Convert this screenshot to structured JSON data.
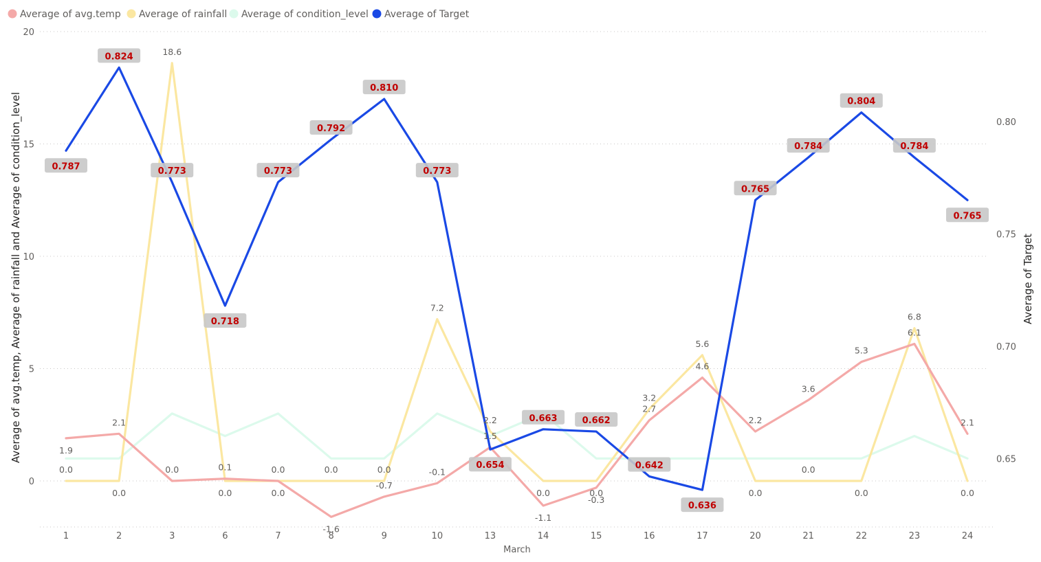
{
  "chart_data": {
    "type": "line",
    "categories": [
      "1",
      "2",
      "3",
      "6",
      "7",
      "8",
      "9",
      "10",
      "13",
      "14",
      "15",
      "16",
      "17",
      "20",
      "21",
      "22",
      "23",
      "24"
    ],
    "xlabel": "March",
    "ylabel_left": "Average of avg.temp, Average of rainfall and Average of condition_level",
    "ylabel_right": "Average of Target",
    "ylim_left": [
      0,
      20
    ],
    "yticks_left": [
      0,
      5,
      10,
      15,
      20
    ],
    "ylim_right": [
      0.64,
      0.84
    ],
    "yticks_right": [
      0.65,
      0.7,
      0.75,
      0.8
    ],
    "legend_position": "top-left",
    "grid": true,
    "series": [
      {
        "name": "Average of avg.temp",
        "axis": "left",
        "color": "#F4A9A8",
        "values": [
          1.9,
          2.1,
          0.0,
          0.1,
          0.0,
          -1.6,
          -0.7,
          -0.1,
          1.5,
          -1.1,
          -0.3,
          2.7,
          4.6,
          2.2,
          3.6,
          5.3,
          6.1,
          2.1
        ],
        "labels": [
          "1.9",
          "2.1",
          "0.0",
          "0.1",
          "0.0",
          "-1.6",
          "-0.7",
          "-0.1",
          "1.5",
          "-1.1",
          "-0.3",
          "2.7",
          "4.6",
          "2.2",
          "3.6",
          "5.3",
          "6.1",
          "2.1"
        ]
      },
      {
        "name": "Average of rainfall",
        "axis": "left",
        "color": "#FBE7A1",
        "values": [
          0.0,
          0.0,
          18.6,
          0.0,
          0.0,
          0.0,
          0.0,
          7.2,
          2.2,
          0.0,
          0.0,
          3.2,
          5.6,
          0.0,
          0.0,
          0.0,
          6.8,
          0.0
        ],
        "labels": [
          "0.0",
          "0.0",
          "18.6",
          "0.0",
          "0.0",
          "0.0",
          "0.0",
          "7.2",
          "2.2",
          "0.0",
          "0.0",
          "3.2",
          "5.6",
          "0.0",
          "0.0",
          "0.0",
          "6.8",
          "0.0"
        ]
      },
      {
        "name": "Average of condition_level",
        "axis": "left",
        "color": "#DCFAEC",
        "values": [
          1,
          1,
          3,
          2,
          3,
          1,
          1,
          3,
          2,
          3,
          1,
          1,
          1,
          1,
          1,
          1,
          2,
          1
        ]
      },
      {
        "name": "Average of Target",
        "axis": "right",
        "color": "#1A49E5",
        "values": [
          0.787,
          0.824,
          0.773,
          0.718,
          0.773,
          0.792,
          0.81,
          0.773,
          0.654,
          0.663,
          0.662,
          0.642,
          0.636,
          0.765,
          0.784,
          0.804,
          0.784,
          0.765
        ],
        "labels": [
          "0.787",
          "0.824",
          "0.773",
          "0.718",
          "0.773",
          "0.792",
          "0.810",
          "0.773",
          "0.654",
          "0.663",
          "0.662",
          "0.642",
          "0.636",
          "0.765",
          "0.784",
          "0.804",
          "0.784",
          "0.765"
        ]
      }
    ]
  }
}
